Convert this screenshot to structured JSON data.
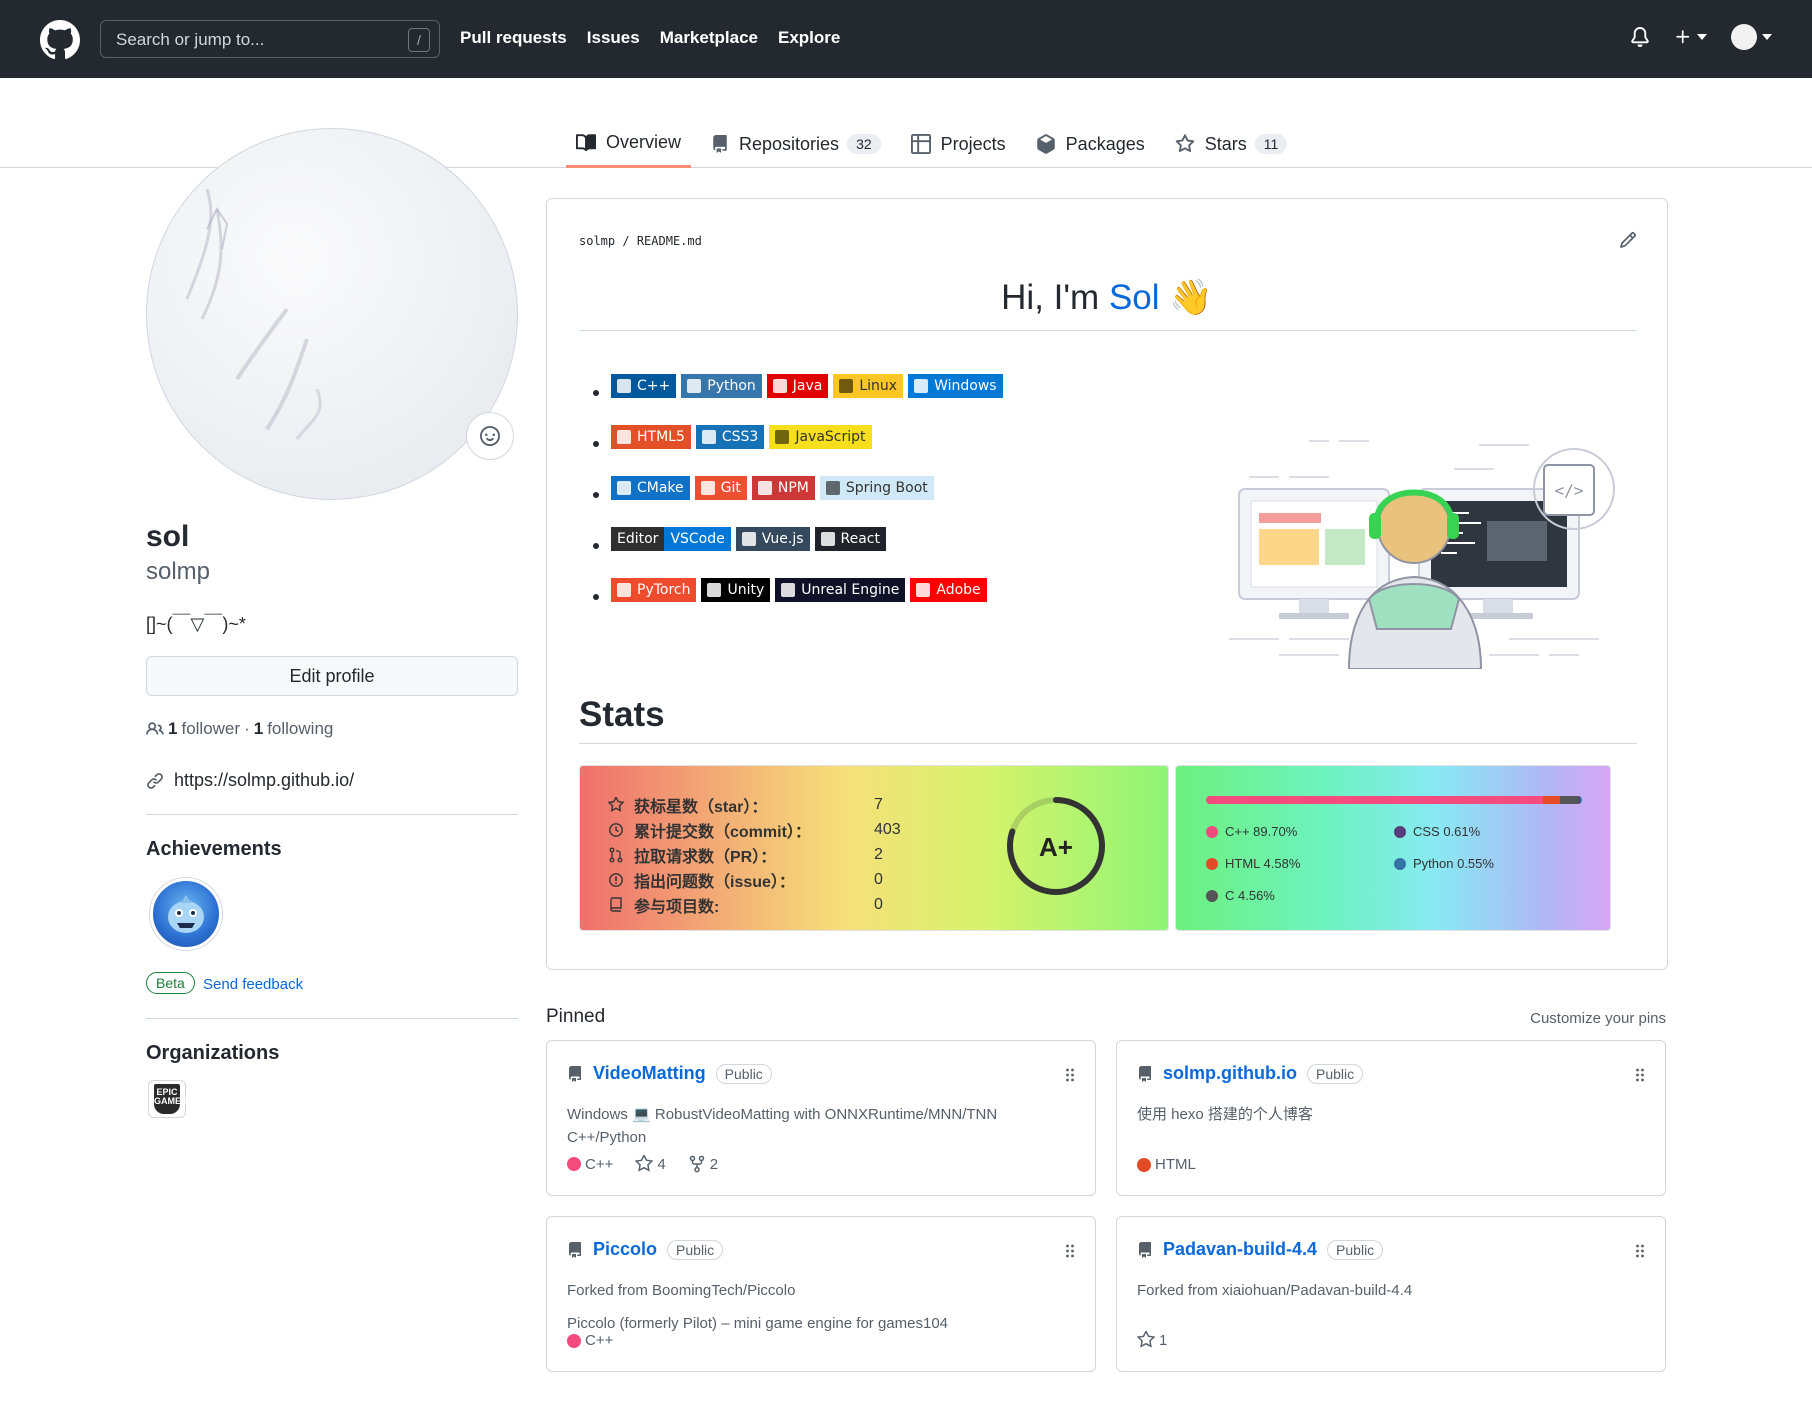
{
  "header": {
    "search_placeholder": "Search or jump to...",
    "search_shortcut": "/",
    "nav": [
      "Pull requests",
      "Issues",
      "Marketplace",
      "Explore"
    ]
  },
  "tabs": [
    {
      "label": "Overview",
      "count": null,
      "icon": "book-icon"
    },
    {
      "label": "Repositories",
      "count": "32",
      "icon": "repo-icon"
    },
    {
      "label": "Projects",
      "count": null,
      "icon": "table-icon"
    },
    {
      "label": "Packages",
      "count": null,
      "icon": "package-icon"
    },
    {
      "label": "Stars",
      "count": "11",
      "icon": "star-icon"
    }
  ],
  "profile": {
    "name": "sol",
    "login": "solmp",
    "bio": "[]~(￣▽￣)~*",
    "edit_label": "Edit profile",
    "followers_count": "1",
    "followers_label": "follower",
    "separator": "·",
    "following_count": "1",
    "following_label": "following",
    "website": "https://solmp.github.io/",
    "achievements_title": "Achievements",
    "beta_label": "Beta",
    "feedback_label": "Send feedback",
    "organizations_title": "Organizations",
    "org_logo_text": "EPIC GAMES"
  },
  "readme": {
    "path_owner": "solmp",
    "path_sep": "/",
    "path_file": "README.md",
    "greeting_prefix": "Hi, I'm ",
    "greeting_name": "Sol",
    "greeting_emoji": "👋",
    "badge_rows": [
      [
        {
          "label": "C++",
          "color": "#00599c"
        },
        {
          "label": "Python",
          "color": "#3776ab"
        },
        {
          "label": "Java",
          "color": "#e00000"
        },
        {
          "label": "Linux",
          "color": "#fcc624",
          "text": "#333333"
        },
        {
          "label": "Windows",
          "color": "#0078d6"
        }
      ],
      [
        {
          "label": "HTML5",
          "color": "#e34f26"
        },
        {
          "label": "CSS3",
          "color": "#1572b6"
        },
        {
          "label": "JavaScript",
          "color": "#f7df1e",
          "text": "#333333"
        }
      ],
      [
        {
          "label": "CMake",
          "color": "#0f72c7"
        },
        {
          "label": "Git",
          "color": "#f05032"
        },
        {
          "label": "NPM",
          "color": "#cb3837"
        },
        {
          "label": "Spring Boot",
          "color": "#cfe9f7",
          "text": "#333333"
        }
      ],
      [
        {
          "label": "Editor",
          "label2": "VSCode",
          "split": true
        },
        {
          "label": "Vue.js",
          "color": "#35495e"
        },
        {
          "label": "React",
          "color": "#20232a"
        }
      ],
      [
        {
          "label": "PyTorch",
          "color": "#ee4c2c"
        },
        {
          "label": "Unity",
          "color": "#000000"
        },
        {
          "label": "Unreal Engine",
          "color": "#0e1128"
        },
        {
          "label": "Adobe",
          "color": "#ff0000"
        }
      ]
    ],
    "stats_heading": "Stats"
  },
  "stats_card": {
    "rows": [
      {
        "label": "获标星数（star）：",
        "value": "7",
        "icon": "star-icon"
      },
      {
        "label": "累计提交数（commit）：",
        "value": "403",
        "icon": "history-icon"
      },
      {
        "label": "拉取请求数（PR）：",
        "value": "2",
        "icon": "pull-request-icon"
      },
      {
        "label": "指出问题数（issue）：",
        "value": "0",
        "icon": "issue-icon"
      },
      {
        "label": "参与项目数:",
        "value": "0",
        "icon": "repo-icon"
      }
    ],
    "rank": "A+",
    "rank_progress": 0.8
  },
  "langs_card": {
    "languages": [
      {
        "name": "C++",
        "percent": 89.7,
        "label": "C++ 89.70%",
        "color": "#f34b7d"
      },
      {
        "name": "HTML",
        "percent": 4.58,
        "label": "HTML 4.58%",
        "color": "#e34c26"
      },
      {
        "name": "C",
        "percent": 4.56,
        "label": "C 4.56%",
        "color": "#555555"
      },
      {
        "name": "CSS",
        "percent": 0.61,
        "label": "CSS 0.61%",
        "color": "#563d7c"
      },
      {
        "name": "Python",
        "percent": 0.55,
        "label": "Python 0.55%",
        "color": "#3572a5"
      }
    ]
  },
  "pinned": {
    "title": "Pinned",
    "customize": "Customize your pins",
    "items": [
      {
        "name": "VideoMatting",
        "visibility": "Public",
        "desc": "Windows 💻 RobustVideoMatting with ONNXRuntime/MNN/TNN C++/Python",
        "desc2": "",
        "lang": "C++",
        "lang_color": "#f34b7d",
        "stars": "4",
        "forks": "2"
      },
      {
        "name": "solmp.github.io",
        "visibility": "Public",
        "desc": "使用 hexo 搭建的个人博客",
        "desc2": "",
        "lang": "HTML",
        "lang_color": "#e34c26",
        "stars": "",
        "forks": ""
      },
      {
        "name": "Piccolo",
        "visibility": "Public",
        "desc": "Forked from BoomingTech/Piccolo",
        "desc2": "Piccolo (formerly Pilot) – mini game engine for games104",
        "lang": "C++",
        "lang_color": "#f34b7d",
        "stars": "",
        "forks": ""
      },
      {
        "name": "Padavan-build-4.4",
        "visibility": "Public",
        "desc": "Forked from xiaiohuan/Padavan-build-4.4",
        "desc2": "",
        "lang": "",
        "lang_color": "",
        "stars": "1",
        "forks": ""
      }
    ]
  }
}
